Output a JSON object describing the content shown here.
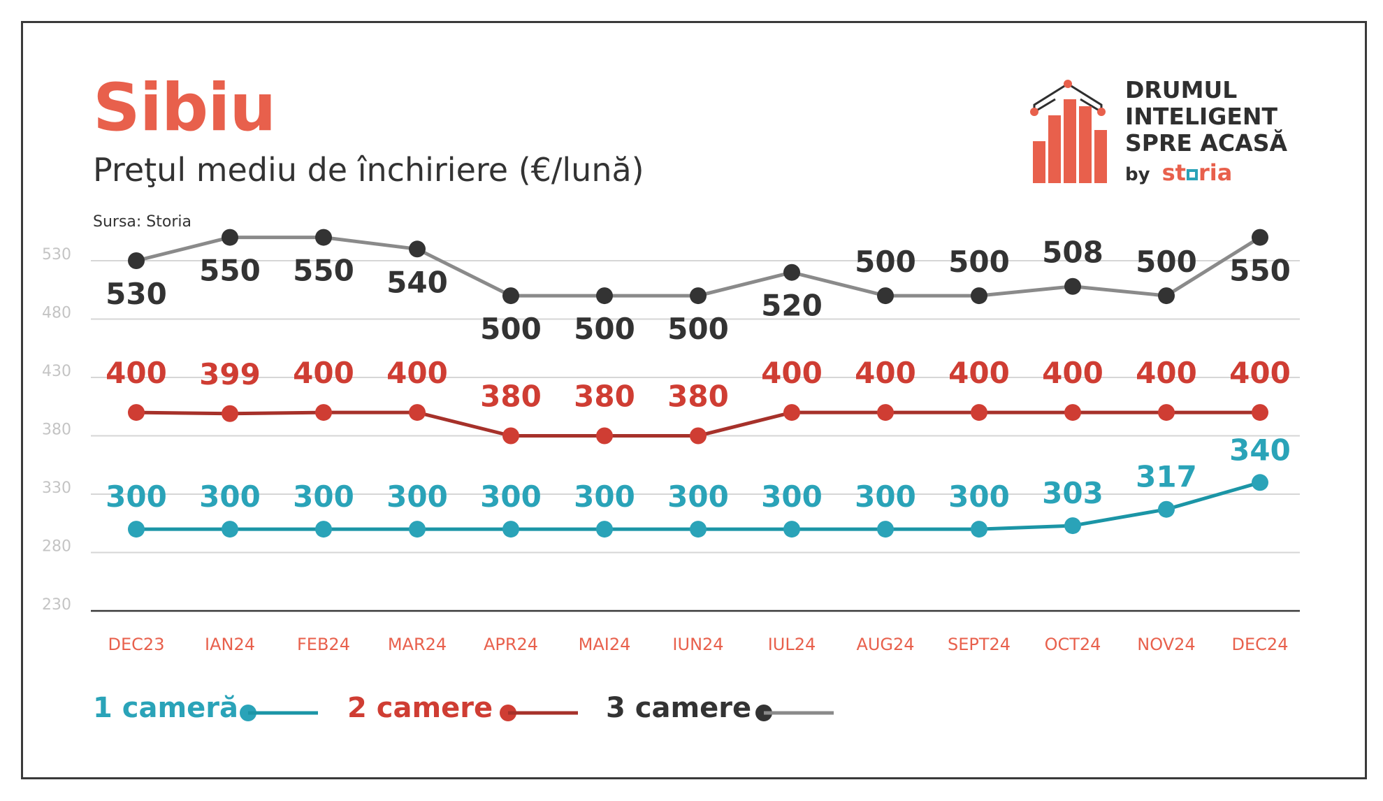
{
  "title": "Sibiu",
  "subtitle": "Preţul mediu de închiriere (€/lună)",
  "source": "Sursa: Storia",
  "logo": {
    "line1": "DRUMUL",
    "line2": "INTELIGENT",
    "line3": "SPRE ACASĂ",
    "by": "by",
    "brand_a": "st",
    "brand_b": "ria",
    "colors": {
      "accent": "#e8604c",
      "dark": "#2f2f2f",
      "teal": "#2aa3b8"
    }
  },
  "chart_data": {
    "type": "line",
    "categories": [
      "DEC23",
      "IAN24",
      "FEB24",
      "MAR24",
      "APR24",
      "MAI24",
      "IUN24",
      "IUL24",
      "AUG24",
      "SEPT24",
      "OCT24",
      "NOV24",
      "DEC24"
    ],
    "y_ticks": [
      230,
      280,
      330,
      380,
      430,
      480,
      530
    ],
    "ylim": [
      230,
      530
    ],
    "grid": true,
    "legend_position": "bottom-left",
    "series": [
      {
        "name": "1 cameră",
        "color": "#1b95a6",
        "label_color": "#2aa3b8",
        "values": [
          300,
          300,
          300,
          300,
          300,
          300,
          300,
          300,
          300,
          300,
          303,
          317,
          340
        ]
      },
      {
        "name": "2 camere",
        "color": "#a6312a",
        "label_color": "#cf3d33",
        "values": [
          400,
          399,
          400,
          400,
          380,
          380,
          380,
          400,
          400,
          400,
          400,
          400,
          400
        ]
      },
      {
        "name": "3 camere",
        "color": "#8a8a8a",
        "label_color": "#333333",
        "values": [
          530,
          550,
          550,
          540,
          500,
          500,
          500,
          520,
          500,
          500,
          508,
          500,
          550
        ]
      }
    ]
  }
}
